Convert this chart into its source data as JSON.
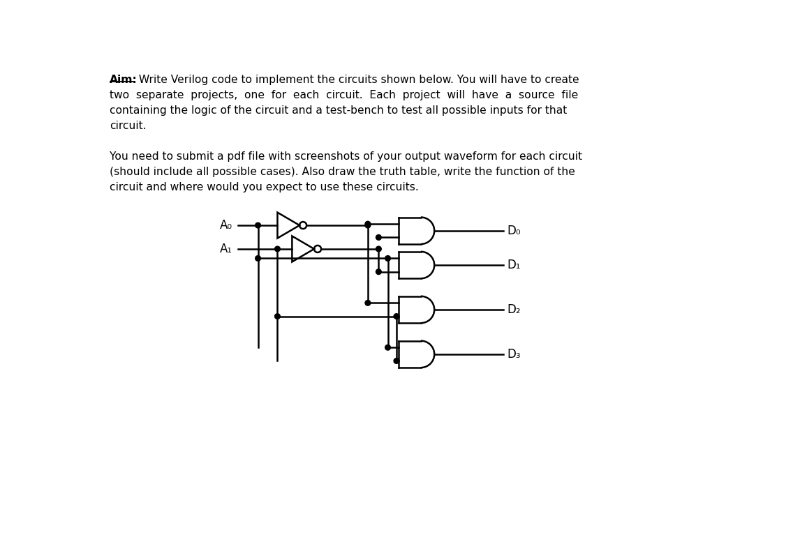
{
  "bg_color": "#ffffff",
  "line_color": "#000000",
  "aim_label": "Aim:",
  "aim_rest": " Write Verilog code to implement the circuits shown below. You will have to create",
  "para1_lines": [
    "two  separate  projects,  one  for  each  circuit.  Each  project  will  have  a  source  file",
    "containing the logic of the circuit and a test-bench to test all possible inputs for that",
    "circuit."
  ],
  "para2_lines": [
    "You need to submit a pdf file with screenshots of your output waveform for each circuit",
    "(should include all possible cases). Also draw the truth table, write the function of the",
    "circuit and where would you expect to use these circuits."
  ],
  "input_labels": [
    "A₀",
    "A₁"
  ],
  "output_labels": [
    "D₀",
    "D₁",
    "D₂",
    "D₃"
  ]
}
